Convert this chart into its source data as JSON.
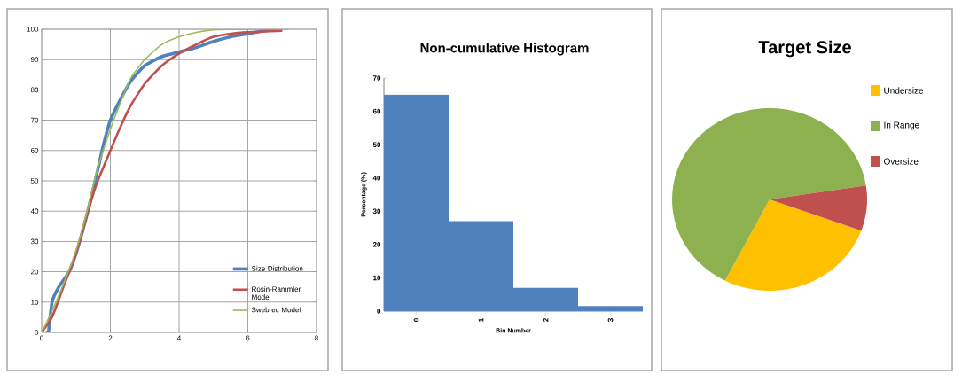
{
  "chart_data": [
    {
      "type": "line",
      "xlim": [
        0,
        8
      ],
      "xticks": [
        0,
        2,
        4,
        6,
        8
      ],
      "ylim": [
        0,
        100
      ],
      "yticks": [
        0,
        10,
        20,
        30,
        40,
        50,
        60,
        70,
        80,
        90,
        100
      ],
      "grid": true,
      "legend": "bottom right",
      "marker": "none",
      "series": [
        {
          "name": "Size Distribution",
          "color": "#4f81bd",
          "x": [
            0.1,
            0.2,
            0.3,
            0.5,
            0.8,
            1,
            1.3,
            1.6,
            1.8,
            2,
            2.3,
            2.6,
            3,
            3.5,
            4,
            4.5,
            5,
            5.5,
            6,
            6.5,
            7
          ],
          "values": [
            0,
            0.5,
            10,
            15,
            20,
            26,
            38,
            52,
            62,
            70,
            77,
            83,
            88,
            91,
            92.5,
            94,
            96,
            97.5,
            98.5,
            99.5,
            100
          ]
        },
        {
          "name": "Rosin-Rammler Model",
          "color": "#c0504d",
          "x": [
            0,
            0.3,
            0.6,
            1,
            1.3,
            1.6,
            2,
            2.3,
            2.6,
            3,
            3.5,
            4,
            4.5,
            5,
            5.5,
            6,
            7
          ],
          "values": [
            0,
            5,
            14,
            26,
            38,
            49,
            60,
            68,
            75,
            82,
            88,
            92,
            95,
            97.5,
            98.5,
            99,
            99.5
          ]
        },
        {
          "name": "Swebrec Model",
          "color": "#9bbb59",
          "x": [
            0,
            0.3,
            0.6,
            1,
            1.3,
            1.6,
            2,
            2.3,
            2.6,
            3,
            3.5,
            4,
            4.5,
            5,
            6,
            7.2
          ],
          "values": [
            0,
            7,
            15,
            27,
            39,
            53,
            67,
            76,
            84,
            90,
            95,
            97.5,
            99,
            99.8,
            100,
            100
          ]
        }
      ]
    },
    {
      "type": "bar",
      "title": "Non-cumulative Histogram",
      "xlabel": "Bin Number",
      "ylabel": "Percentage (%)",
      "categories": [
        "0",
        "1",
        "2",
        "3"
      ],
      "values": [
        65,
        27,
        7,
        1.5
      ],
      "color": "#4f81bd",
      "ylim": [
        0,
        70
      ],
      "yticks": [
        0,
        10,
        20,
        30,
        40,
        50,
        60,
        70
      ]
    },
    {
      "type": "pie",
      "title": "Target Size",
      "categories": [
        "Undersize",
        "In Range",
        "Oversize"
      ],
      "values": [
        27,
        65,
        8
      ],
      "colors": [
        "#ffc000",
        "#8eb14f",
        "#c0504d"
      ],
      "legend": "right"
    }
  ]
}
